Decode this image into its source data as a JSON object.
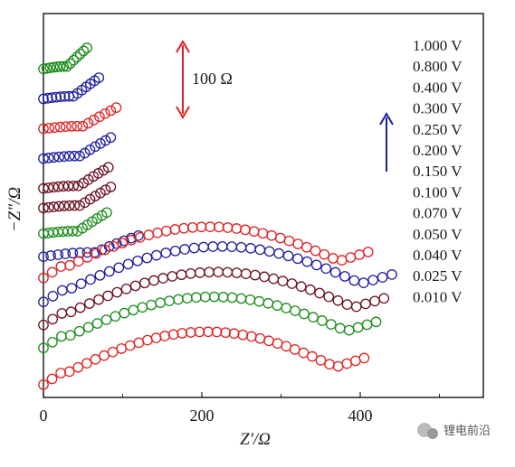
{
  "chart_data": {
    "type": "scatter",
    "title": "",
    "xlabel": "Z′/Ω",
    "ylabel": "−Z″/Ω",
    "xticks": [
      "0",
      "200",
      "400"
    ],
    "scale_bar_label": "100 Ω",
    "watermark": "锂电前沿",
    "legend": [
      "1.000 V",
      "0.800 V",
      "0.400 V",
      "0.300 V",
      "0.250 V",
      "0.200 V",
      "0.150 V",
      "0.100 V",
      "0.070 V",
      "0.050 V",
      "0.040 V",
      "0.025 V",
      "0.010 V"
    ],
    "series": [
      {
        "name": "1.000 V",
        "color": "#1a8c1a",
        "type": "arc",
        "baseline": 385,
        "x_end": 55,
        "arc_height": 3
      },
      {
        "name": "0.800 V",
        "color": "#1f1fa0",
        "type": "arc",
        "baseline": 350,
        "x_end": 70,
        "arc_height": 3
      },
      {
        "name": "0.400 V",
        "color": "#e02020",
        "type": "arc",
        "baseline": 315,
        "x_end": 92,
        "arc_height": 3
      },
      {
        "name": "0.300 V",
        "color": "#1f1fa0",
        "type": "arc",
        "baseline": 280,
        "x_end": 85,
        "arc_height": 3
      },
      {
        "name": "0.250 V",
        "color": "#6b1020",
        "type": "arc",
        "baseline": 245,
        "x_end": 82,
        "arc_height": 3
      },
      {
        "name": "0.200 V",
        "color": "#6b1020",
        "type": "arc",
        "baseline": 222,
        "x_end": 85,
        "arc_height": 3
      },
      {
        "name": "0.150 V",
        "color": "#1a8c1a",
        "type": "arc",
        "baseline": 192,
        "x_end": 80,
        "arc_height": 3
      },
      {
        "name": "0.100 V",
        "color": "#1f1fa0",
        "type": "arc",
        "baseline": 165,
        "x_end": 120,
        "arc_height": 5
      },
      {
        "name": "0.070 V",
        "color": "#e02020",
        "type": "semicircle",
        "baseline": 140,
        "x_start": 0,
        "x_end": 410,
        "arc_height": 60
      },
      {
        "name": "0.050 V",
        "color": "#1f1fa0",
        "type": "semicircle",
        "baseline": 112,
        "x_start": 0,
        "x_end": 440,
        "arc_height": 65
      },
      {
        "name": "0.040 V",
        "color": "#6b1020",
        "type": "semicircle",
        "baseline": 85,
        "x_start": 0,
        "x_end": 430,
        "arc_height": 62
      },
      {
        "name": "0.025 V",
        "color": "#1a8c1a",
        "type": "semicircle",
        "baseline": 58,
        "x_start": 0,
        "x_end": 420,
        "arc_height": 60
      },
      {
        "name": "0.010 V",
        "color": "#e02020",
        "type": "semicircle",
        "baseline": 15,
        "x_start": 0,
        "x_end": 405,
        "arc_height": 62
      }
    ],
    "xlim": [
      0,
      560
    ],
    "ylim": [
      0,
      450
    ],
    "grid": false,
    "legend_position": "right"
  }
}
